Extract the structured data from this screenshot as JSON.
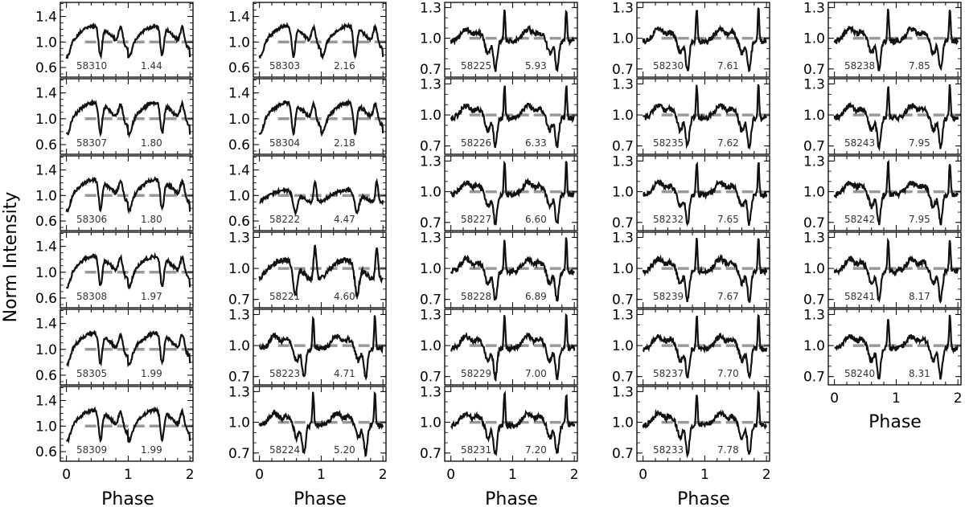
{
  "figure": {
    "ylabel": "Norm Intensity",
    "xlabel": "Phase"
  },
  "chart_data": {
    "type": "line",
    "description_of_axes": "Grid of pulse profiles; x = Phase 0-2, y = normalized intensity; dashed reference line at 1.0",
    "x_ticks": [
      0,
      1,
      2
    ],
    "xlim": [
      -0.1,
      2.05
    ],
    "columns": [
      {
        "yticks": [
          "0.6",
          "1.0",
          "1.4"
        ],
        "panels": [
          {
            "mjd": "58310",
            "val": "1.44",
            "ylim": [
              0.45,
              1.62
            ],
            "amp": 0.62,
            "peak": 0.9,
            "shape": "broad"
          },
          {
            "mjd": "58307",
            "val": "1.80",
            "ylim": [
              0.45,
              1.62
            ],
            "amp": 0.6,
            "peak": 0.9,
            "shape": "broad"
          },
          {
            "mjd": "58306",
            "val": "1.80",
            "ylim": [
              0.45,
              1.62
            ],
            "amp": 0.55,
            "peak": 0.95,
            "shape": "broad"
          },
          {
            "mjd": "58308",
            "val": "1.97",
            "ylim": [
              0.45,
              1.62
            ],
            "amp": 0.6,
            "peak": 0.9,
            "shape": "broad"
          },
          {
            "mjd": "58305",
            "val": "1.99",
            "ylim": [
              0.45,
              1.62
            ],
            "amp": 0.6,
            "peak": 0.9,
            "shape": "broad"
          },
          {
            "mjd": "58309",
            "val": "1.99",
            "ylim": [
              0.45,
              1.62
            ],
            "amp": 0.65,
            "peak": 0.9,
            "shape": "broad"
          }
        ]
      },
      {
        "yticks": [
          "0.6",
          "1.0",
          "1.4"
        ],
        "yticks_lower": [
          "0.7",
          "1.0",
          "1.3"
        ],
        "panels": [
          {
            "mjd": "58303",
            "val": "2.16",
            "ylim": [
              0.45,
              1.62
            ],
            "amp": 0.55,
            "peak": 0.9,
            "shape": "broad"
          },
          {
            "mjd": "58304",
            "val": "2.18",
            "ylim": [
              0.45,
              1.62
            ],
            "amp": 0.55,
            "peak": 0.9,
            "shape": "broad"
          },
          {
            "mjd": "58222",
            "val": "4.47",
            "ylim": [
              0.45,
              1.62
            ],
            "amp": 0.5,
            "peak": 0.95,
            "shape": "mixed"
          },
          {
            "mjd": "58221",
            "val": "4.60",
            "ylim": [
              0.62,
              1.35
            ],
            "amp": 0.45,
            "peak": 0.9,
            "shape": "mixed"
          },
          {
            "mjd": "58223",
            "val": "4.71",
            "ylim": [
              0.62,
              1.35
            ],
            "amp": 0.4,
            "peak": 0.9,
            "shape": "narrow"
          },
          {
            "mjd": "58224",
            "val": "5.20",
            "ylim": [
              0.62,
              1.35
            ],
            "amp": 0.4,
            "peak": 0.9,
            "shape": "narrow"
          }
        ]
      },
      {
        "yticks": [
          "0.7",
          "1.0",
          "1.3"
        ],
        "panels": [
          {
            "mjd": "58225",
            "val": "5.93",
            "ylim": [
              0.62,
              1.35
            ],
            "amp": 0.35,
            "peak": 0.95,
            "shape": "narrow"
          },
          {
            "mjd": "58226",
            "val": "6.33",
            "ylim": [
              0.62,
              1.35
            ],
            "amp": 0.35,
            "peak": 0.95,
            "shape": "narrow"
          },
          {
            "mjd": "58227",
            "val": "6.60",
            "ylim": [
              0.62,
              1.35
            ],
            "amp": 0.33,
            "peak": 0.95,
            "shape": "narrow"
          },
          {
            "mjd": "58228",
            "val": "6.89",
            "ylim": [
              0.62,
              1.35
            ],
            "amp": 0.33,
            "peak": 0.95,
            "shape": "narrow"
          },
          {
            "mjd": "58229",
            "val": "7.00",
            "ylim": [
              0.62,
              1.35
            ],
            "amp": 0.32,
            "peak": 0.95,
            "shape": "narrow"
          },
          {
            "mjd": "58231",
            "val": "7.20",
            "ylim": [
              0.62,
              1.35
            ],
            "amp": 0.3,
            "peak": 0.95,
            "shape": "narrow"
          }
        ]
      },
      {
        "yticks": [
          "0.7",
          "1.0",
          "1.3"
        ],
        "panels": [
          {
            "mjd": "58230",
            "val": "7.61",
            "ylim": [
              0.62,
              1.35
            ],
            "amp": 0.3,
            "peak": 0.95,
            "shape": "narrow"
          },
          {
            "mjd": "58235",
            "val": "7.62",
            "ylim": [
              0.62,
              1.35
            ],
            "amp": 0.3,
            "peak": 0.95,
            "shape": "narrow"
          },
          {
            "mjd": "58232",
            "val": "7.65",
            "ylim": [
              0.62,
              1.35
            ],
            "amp": 0.3,
            "peak": 0.95,
            "shape": "narrow"
          },
          {
            "mjd": "58239",
            "val": "7.67",
            "ylim": [
              0.62,
              1.35
            ],
            "amp": 0.3,
            "peak": 0.95,
            "shape": "narrow"
          },
          {
            "mjd": "58237",
            "val": "7.70",
            "ylim": [
              0.62,
              1.35
            ],
            "amp": 0.3,
            "peak": 0.95,
            "shape": "narrow"
          },
          {
            "mjd": "58233",
            "val": "7.78",
            "ylim": [
              0.62,
              1.35
            ],
            "amp": 0.3,
            "peak": 0.95,
            "shape": "narrow"
          }
        ]
      },
      {
        "yticks": [
          "0.7",
          "1.0",
          "1.3"
        ],
        "panels": [
          {
            "mjd": "58238",
            "val": "7.85",
            "ylim": [
              0.62,
              1.35
            ],
            "amp": 0.28,
            "peak": 0.95,
            "shape": "narrow"
          },
          {
            "mjd": "58243",
            "val": "7.95",
            "ylim": [
              0.62,
              1.35
            ],
            "amp": 0.28,
            "peak": 0.95,
            "shape": "narrow"
          },
          {
            "mjd": "58242",
            "val": "7.95",
            "ylim": [
              0.62,
              1.35
            ],
            "amp": 0.28,
            "peak": 0.95,
            "shape": "narrow"
          },
          {
            "mjd": "58241",
            "val": "8.17",
            "ylim": [
              0.62,
              1.35
            ],
            "amp": 0.28,
            "peak": 0.95,
            "shape": "narrow"
          },
          {
            "mjd": "58240",
            "val": "8.31",
            "ylim": [
              0.62,
              1.35
            ],
            "amp": 0.28,
            "peak": 0.95,
            "shape": "narrow"
          }
        ]
      }
    ]
  }
}
